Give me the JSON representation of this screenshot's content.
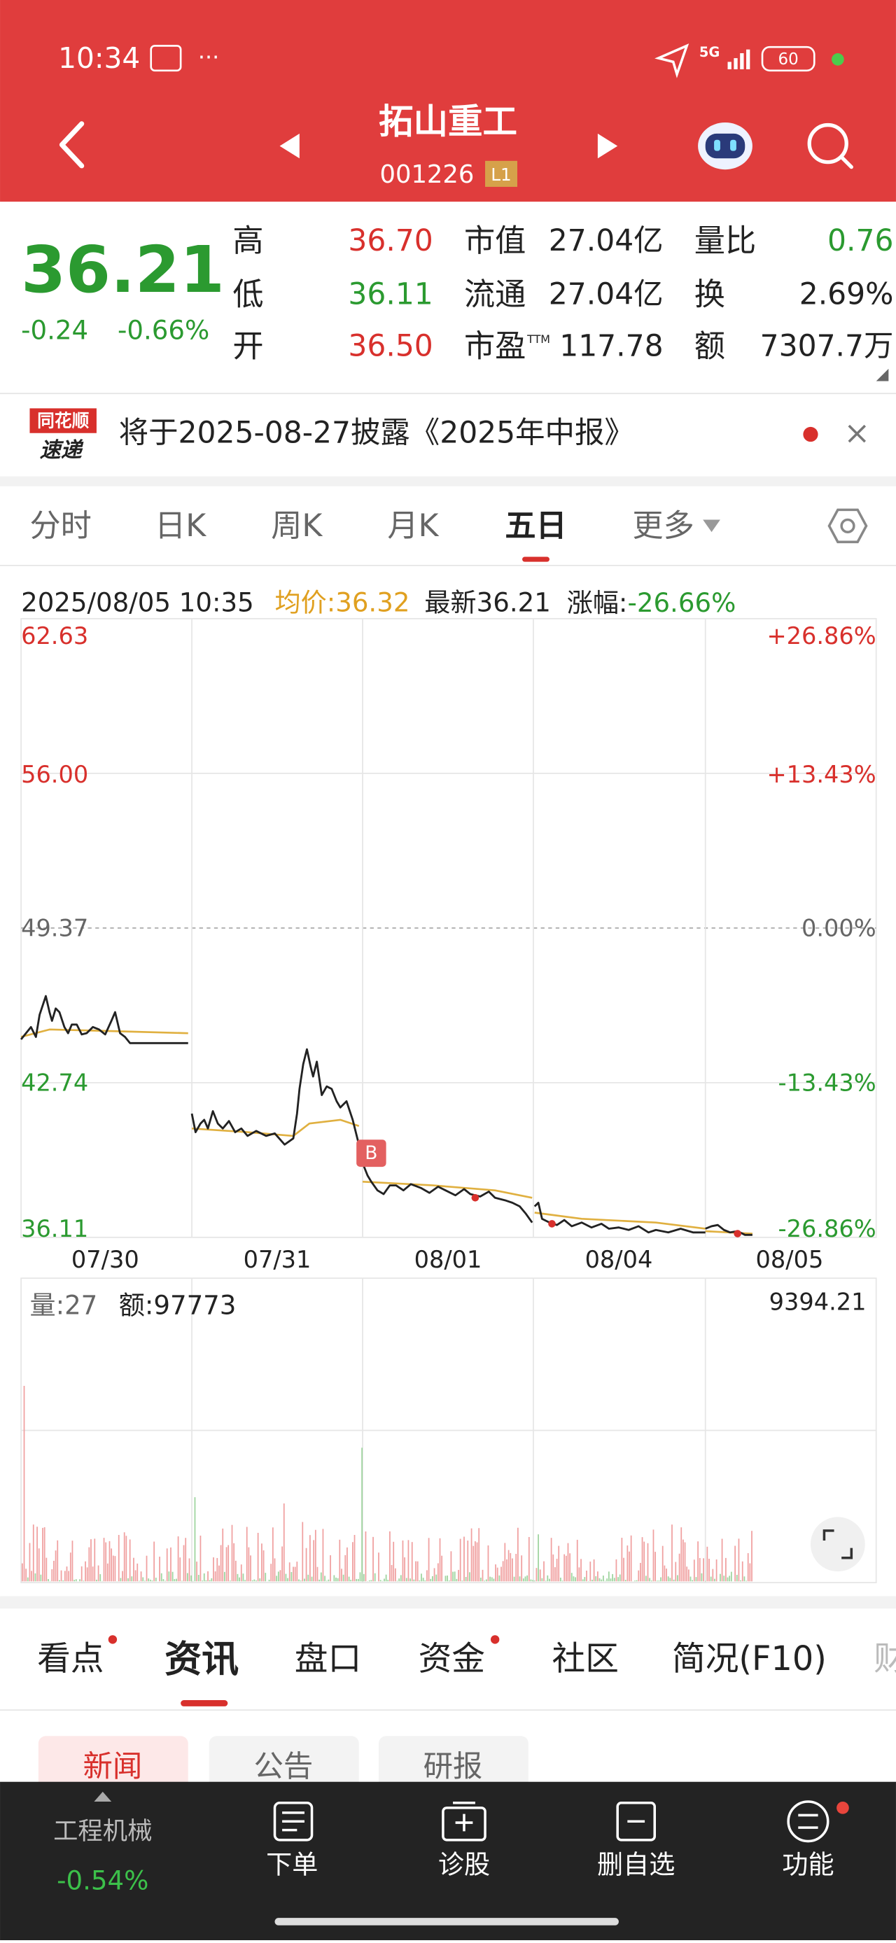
{
  "status_bar": {
    "time": "10:34",
    "network": "5G",
    "battery": "60"
  },
  "header": {
    "title": "拓山重工",
    "code": "001226",
    "badge": "L1"
  },
  "quote": {
    "price": "36.21",
    "change": "-0.24",
    "change_pct": "-0.66%",
    "col1": [
      {
        "label": "高",
        "value": "36.70"
      },
      {
        "label": "低",
        "value": "36.11"
      },
      {
        "label": "开",
        "value": "36.50"
      }
    ],
    "col2": [
      {
        "label": "市值",
        "value": "27.04亿"
      },
      {
        "label": "流通",
        "value": "27.04亿"
      },
      {
        "label": "市盈",
        "sup": "TTM",
        "value": "117.78"
      }
    ],
    "col3": [
      {
        "label": "量比",
        "value": "0.76"
      },
      {
        "label": "换",
        "value": "2.69%"
      },
      {
        "label": "额",
        "value": "7307.7万"
      }
    ]
  },
  "banner": {
    "logo_top": "同花顺",
    "logo_bottom": "速递",
    "text": "将于2025-08-27披露《2025年中报》"
  },
  "chart_tabs": {
    "items": [
      "分时",
      "日K",
      "周K",
      "月K",
      "五日",
      "更多"
    ],
    "active": "五日"
  },
  "chart_info": {
    "time": "2025/08/05 10:35",
    "avg": "均价:36.32",
    "latest": "最新36.21",
    "change_label": "涨幅:",
    "change": "-26.66%"
  },
  "price_chart": {
    "left_labels": [
      "62.63",
      "56.00",
      "49.37",
      "42.74",
      "36.11"
    ],
    "right_labels": [
      "+26.86%",
      "+13.43%",
      "0.00%",
      "-13.43%",
      "-26.86%"
    ],
    "dates": [
      "07/30",
      "07/31",
      "08/01",
      "08/04",
      "08/05"
    ],
    "marker": "B"
  },
  "volume_chart": {
    "volume": "量:27",
    "amount": "额:97773",
    "max": "9394.21"
  },
  "info_tabs": {
    "items": [
      "看点",
      "资讯",
      "盘口",
      "资金",
      "社区",
      "简况(F10)",
      "财"
    ],
    "active": "资讯"
  },
  "news_chips": [
    "新闻",
    "公告",
    "研报"
  ],
  "bottom_nav": {
    "sector": "工程机械",
    "sector_change": "-0.54%",
    "items": [
      "下单",
      "诊股",
      "删自选",
      "功能"
    ]
  }
}
